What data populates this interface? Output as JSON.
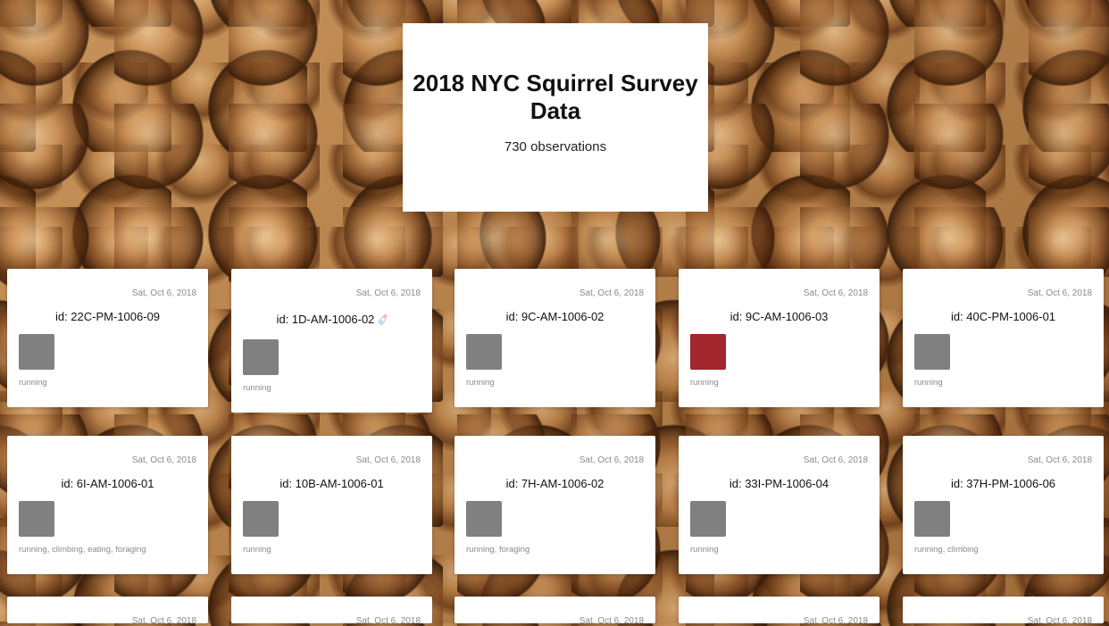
{
  "hero": {
    "title": "2018 NYC Squirrel Survey Data",
    "count": "730 observations"
  },
  "colors": {
    "swatch_default": "#808080",
    "swatch_red": "#a3252d"
  },
  "cards": [
    {
      "date": "Sat, Oct 6, 2018",
      "id": "id: 22C-PM-1006-09",
      "activities": "running"
    },
    {
      "date": "Sat, Oct 6, 2018",
      "id": "id: 1D-AM-1006-02",
      "activities": "running",
      "icon": "baby-bottle-icon"
    },
    {
      "date": "Sat, Oct 6, 2018",
      "id": "id: 9C-AM-1006-02",
      "activities": "running"
    },
    {
      "date": "Sat, Oct 6, 2018",
      "id": "id: 9C-AM-1006-03",
      "activities": "running",
      "swatch": "#a3252d"
    },
    {
      "date": "Sat, Oct 6, 2018",
      "id": "id: 40C-PM-1006-01",
      "activities": "running"
    },
    {
      "date": "Sat, Oct 6, 2018",
      "id": "id: 6I-AM-1006-01",
      "activities": "running, climbing, eating, foraging"
    },
    {
      "date": "Sat, Oct 6, 2018",
      "id": "id: 10B-AM-1006-01",
      "activities": "running"
    },
    {
      "date": "Sat, Oct 6, 2018",
      "id": "id: 7H-AM-1006-02",
      "activities": "running, foraging"
    },
    {
      "date": "Sat, Oct 6, 2018",
      "id": "id: 33I-PM-1006-04",
      "activities": "running"
    },
    {
      "date": "Sat, Oct 6, 2018",
      "id": "id: 37H-PM-1006-06",
      "activities": "running, climbing"
    },
    {
      "date": "Sat, Oct 6, 2018"
    },
    {
      "date": "Sat, Oct 6, 2018"
    },
    {
      "date": "Sat, Oct 6, 2018"
    },
    {
      "date": "Sat, Oct 6, 2018"
    },
    {
      "date": "Sat, Oct 6, 2018"
    }
  ]
}
